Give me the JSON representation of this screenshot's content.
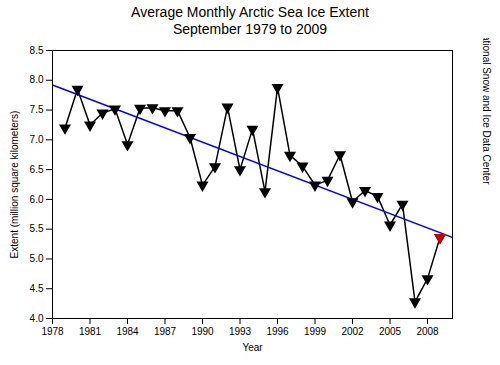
{
  "chart_data": {
    "type": "line",
    "title": "Average Monthly Arctic Sea Ice Extent\nSeptember 1979 to 2009",
    "xlabel": "Year",
    "ylabel": "Extent (million square kilometers)",
    "annotation": "National Snow and Ice Data Center",
    "x": [
      1979,
      1980,
      1981,
      1982,
      1983,
      1984,
      1985,
      1986,
      1987,
      1988,
      1989,
      1990,
      1991,
      1992,
      1993,
      1994,
      1995,
      1996,
      1997,
      1998,
      1999,
      2000,
      2001,
      2002,
      2003,
      2004,
      2005,
      2006,
      2007,
      2008,
      2009
    ],
    "series": [
      {
        "type": "line",
        "color": "#000000",
        "marker": "triangle_down",
        "line_style": "solid",
        "values": [
          7.2,
          7.85,
          7.25,
          7.45,
          7.52,
          6.92,
          7.53,
          7.54,
          7.49,
          7.49,
          7.04,
          6.24,
          6.55,
          7.55,
          6.5,
          7.18,
          6.13,
          7.88,
          6.74,
          6.56,
          6.24,
          6.32,
          6.75,
          5.96,
          6.15,
          6.05,
          5.57,
          5.92,
          4.28,
          4.67,
          5.36
        ]
      },
      {
        "type": "scatter",
        "color": "#CC0000",
        "marker": "triangle_down",
        "x": [
          2009
        ],
        "values": [
          5.36
        ]
      },
      {
        "type": "line",
        "color": "#0000FF",
        "line_style": "solid",
        "x": [
          1978,
          2010
        ],
        "values": [
          7.921,
          5.3615
        ]
      }
    ],
    "xlim": [
      1978,
      2010
    ],
    "ylim": [
      4.0,
      8.5
    ],
    "xticks": [
      1978,
      1981,
      1984,
      1987,
      1990,
      1993,
      1996,
      1999,
      2002,
      2005,
      2008
    ],
    "yticks": [
      {
        "value": 4.0,
        "label": "4.0"
      },
      4.5,
      {
        "value": 5.0,
        "label": "5.0"
      },
      5.5,
      {
        "value": 6.0,
        "label": "6.0"
      },
      6.5,
      {
        "value": 7.0,
        "label": "7.0"
      },
      7.5,
      {
        "value": 8.0,
        "label": "8.0"
      },
      8.5
    ],
    "grid": false
  }
}
